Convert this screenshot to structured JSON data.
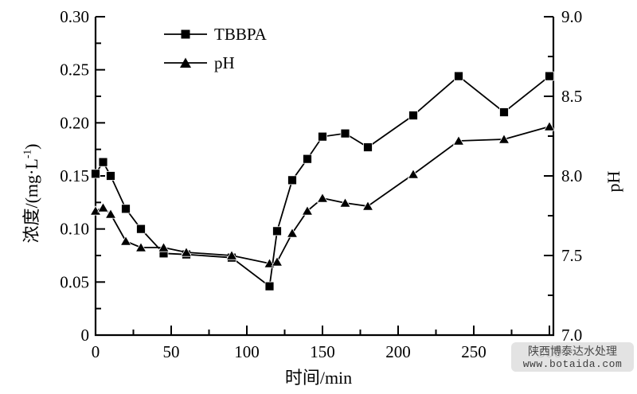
{
  "page": {
    "background": "#ffffff"
  },
  "watermark": {
    "line1": "陕西博泰达水处理",
    "line2": "www.botaida.com"
  },
  "chart_data": {
    "type": "line",
    "title": "",
    "xlabel": "时间/min",
    "ylabel_left_pre": "浓度/(mg·L",
    "ylabel_left_sup": "-1",
    "ylabel_left_post": ")",
    "ylabel_right": "pH",
    "xlim": [
      0,
      300
    ],
    "x_major_ticks": [
      0,
      50,
      100,
      150,
      200,
      250,
      300
    ],
    "x_tick_labels": [
      "0",
      "50",
      "100",
      "150",
      "200",
      "250",
      "300"
    ],
    "x_minor_step": 25,
    "ylim_left": [
      0,
      0.3
    ],
    "yleft_major_ticks": [
      0,
      0.05,
      0.1,
      0.15,
      0.2,
      0.25,
      0.3
    ],
    "yleft_tick_labels": [
      "0",
      "0.05",
      "0.10",
      "0.15",
      "0.20",
      "0.25",
      "0.30"
    ],
    "yleft_minor_step": 0.025,
    "ylim_right": [
      7.0,
      9.0
    ],
    "yright_major_ticks": [
      7.0,
      7.5,
      8.0,
      8.5,
      9.0
    ],
    "yright_tick_labels": [
      "7.0",
      "7.5",
      "8.0",
      "8.5",
      "9.0"
    ],
    "yright_minor_step": 0.25,
    "grid": false,
    "axis_color": "#000000",
    "background": "#ffffff",
    "x": [
      0,
      5,
      10,
      20,
      30,
      45,
      60,
      90,
      115,
      120,
      130,
      140,
      150,
      165,
      180,
      210,
      240,
      270,
      300
    ],
    "series": [
      {
        "name": "TBBPA",
        "axis": "left",
        "marker": "square",
        "color": "#000000",
        "values": [
          0.152,
          0.163,
          0.15,
          0.119,
          0.1,
          0.077,
          0.076,
          0.073,
          0.046,
          0.098,
          0.146,
          0.166,
          0.187,
          0.19,
          0.177,
          0.207,
          0.244,
          0.21,
          0.244
        ]
      },
      {
        "name": "pH",
        "axis": "right",
        "marker": "triangle",
        "color": "#000000",
        "values": [
          7.78,
          7.8,
          7.76,
          7.59,
          7.55,
          7.55,
          7.52,
          7.5,
          7.45,
          7.46,
          7.64,
          7.78,
          7.86,
          7.83,
          7.81,
          8.01,
          8.22,
          8.23,
          8.31
        ]
      }
    ],
    "legend": {
      "position": "inside-top-left",
      "items": [
        {
          "label": "TBBPA",
          "marker": "square"
        },
        {
          "label": "pH",
          "marker": "triangle"
        }
      ]
    }
  }
}
